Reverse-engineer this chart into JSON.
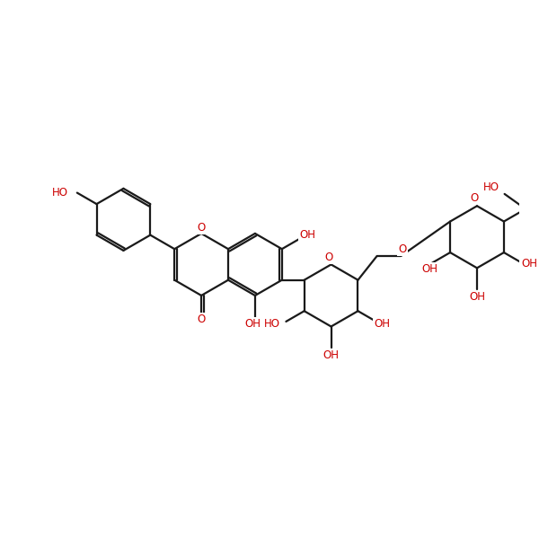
{
  "bg_color": "#ffffff",
  "bond_color": "#1a1a1a",
  "heteroatom_color": "#cc0000",
  "line_width": 1.6,
  "font_size": 8.5,
  "figsize": [
    6.0,
    6.0
  ],
  "dpi": 100,
  "xlim": [
    -4.8,
    5.5
  ],
  "ylim": [
    -3.8,
    4.2
  ]
}
